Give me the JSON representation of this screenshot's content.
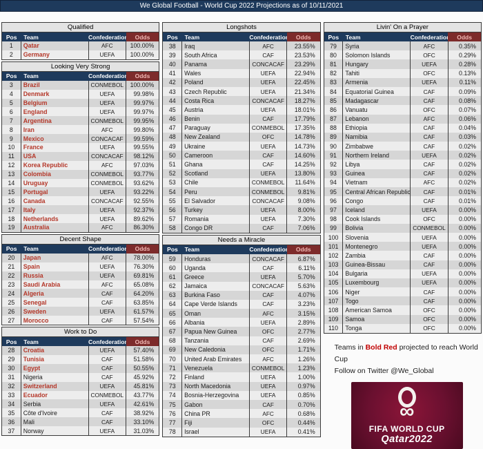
{
  "title": "We Global Football - World Cup 2022 Projections as of 10/11/2021",
  "table_headers": [
    "Pos",
    "Team",
    "Confederation",
    "Odds"
  ],
  "colors": {
    "header_navy": "#1e3a5c",
    "odds_header_maroon": "#7d2b2b",
    "qualified_team_red": "#b5382a",
    "stripe_dark": "#d6d6d6",
    "stripe_light": "#ededed",
    "logo_maroon": "#6b1030"
  },
  "columns": [
    {
      "sections": [
        {
          "title": "Qualified",
          "rows": [
            [
              1,
              "Qatar",
              "AFC",
              "100.00%",
              1
            ],
            [
              2,
              "Germany",
              "UEFA",
              "100.00%",
              1
            ]
          ]
        },
        {
          "title": "Looking Very Strong",
          "rows": [
            [
              3,
              "Brazil",
              "CONMEBOL",
              "100.00%",
              1
            ],
            [
              4,
              "Denmark",
              "UEFA",
              "99.98%",
              1
            ],
            [
              5,
              "Belgium",
              "UEFA",
              "99.97%",
              1
            ],
            [
              6,
              "England",
              "UEFA",
              "99.97%",
              1
            ],
            [
              7,
              "Argentina",
              "CONMEBOL",
              "99.95%",
              1
            ],
            [
              8,
              "Iran",
              "AFC",
              "99.80%",
              1
            ],
            [
              9,
              "Mexico",
              "CONCACAF",
              "99.59%",
              1
            ],
            [
              10,
              "France",
              "UEFA",
              "99.55%",
              1
            ],
            [
              11,
              "USA",
              "CONCACAF",
              "98.12%",
              1
            ],
            [
              12,
              "Korea Republic",
              "AFC",
              "97.03%",
              1
            ],
            [
              13,
              "Colombia",
              "CONMEBOL",
              "93.77%",
              1
            ],
            [
              14,
              "Uruguay",
              "CONMEBOL",
              "93.62%",
              1
            ],
            [
              15,
              "Portugal",
              "UEFA",
              "93.22%",
              1
            ],
            [
              16,
              "Canada",
              "CONCACAF",
              "92.55%",
              1
            ],
            [
              17,
              "Italy",
              "UEFA",
              "92.37%",
              1
            ],
            [
              18,
              "Netherlands",
              "UEFA",
              "89.62%",
              1
            ],
            [
              19,
              "Australia",
              "AFC",
              "86.30%",
              1
            ]
          ]
        },
        {
          "title": "Decent Shape",
          "rows": [
            [
              20,
              "Japan",
              "AFC",
              "78.00%",
              1
            ],
            [
              21,
              "Spain",
              "UEFA",
              "76.30%",
              1
            ],
            [
              22,
              "Russia",
              "UEFA",
              "69.81%",
              1
            ],
            [
              23,
              "Saudi Arabia",
              "AFC",
              "65.08%",
              1
            ],
            [
              24,
              "Algeria",
              "CAF",
              "64.20%",
              1
            ],
            [
              25,
              "Senegal",
              "CAF",
              "63.85%",
              1
            ],
            [
              26,
              "Sweden",
              "UEFA",
              "61.57%",
              1
            ],
            [
              27,
              "Morocco",
              "CAF",
              "57.54%",
              1
            ]
          ]
        },
        {
          "title": "Work to Do",
          "rows": [
            [
              28,
              "Croatia",
              "UEFA",
              "57.40%",
              1
            ],
            [
              29,
              "Tunisia",
              "CAF",
              "51.58%",
              1
            ],
            [
              30,
              "Egypt",
              "CAF",
              "50.55%",
              1
            ],
            [
              31,
              "Nigeria",
              "CAF",
              "45.92%",
              0
            ],
            [
              32,
              "Switzerland",
              "UEFA",
              "45.81%",
              1
            ],
            [
              33,
              "Ecuador",
              "CONMEBOL",
              "43.77%",
              1
            ],
            [
              34,
              "Serbia",
              "UEFA",
              "42.61%",
              0
            ],
            [
              35,
              "Côte d'Ivoire",
              "CAF",
              "38.92%",
              0
            ],
            [
              36,
              "Mali",
              "CAF",
              "33.10%",
              0
            ],
            [
              37,
              "Norway",
              "UEFA",
              "31.03%",
              0
            ]
          ]
        }
      ]
    },
    {
      "sections": [
        {
          "title": "Longshots",
          "rows": [
            [
              38,
              "Iraq",
              "AFC",
              "23.55%",
              0
            ],
            [
              39,
              "South Africa",
              "CAF",
              "23.53%",
              0
            ],
            [
              40,
              "Panama",
              "CONCACAF",
              "23.29%",
              0
            ],
            [
              41,
              "Wales",
              "UEFA",
              "22.94%",
              0
            ],
            [
              42,
              "Poland",
              "UEFA",
              "22.45%",
              0
            ],
            [
              43,
              "Czech Republic",
              "UEFA",
              "21.34%",
              0
            ],
            [
              44,
              "Costa Rica",
              "CONCACAF",
              "18.27%",
              0
            ],
            [
              45,
              "Austria",
              "UEFA",
              "18.01%",
              0
            ],
            [
              46,
              "Benin",
              "CAF",
              "17.79%",
              0
            ],
            [
              47,
              "Paraguay",
              "CONMEBOL",
              "17.35%",
              0
            ],
            [
              48,
              "New Zealand",
              "OFC",
              "14.78%",
              0
            ],
            [
              49,
              "Ukraine",
              "UEFA",
              "14.73%",
              0
            ],
            [
              50,
              "Cameroon",
              "CAF",
              "14.60%",
              0
            ],
            [
              51,
              "Ghana",
              "CAF",
              "14.25%",
              0
            ],
            [
              52,
              "Scotland",
              "UEFA",
              "13.80%",
              0
            ],
            [
              53,
              "Chile",
              "CONMEBOL",
              "11.64%",
              0
            ],
            [
              54,
              "Peru",
              "CONMEBOL",
              "9.81%",
              0
            ],
            [
              55,
              "El Salvador",
              "CONCACAF",
              "9.08%",
              0
            ],
            [
              56,
              "Turkey",
              "UEFA",
              "8.00%",
              0
            ],
            [
              57,
              "Romania",
              "UEFA",
              "7.30%",
              0
            ],
            [
              58,
              "Congo DR",
              "CAF",
              "7.06%",
              0
            ]
          ]
        },
        {
          "title": "Needs a Miracle",
          "rows": [
            [
              59,
              "Honduras",
              "CONCACAF",
              "6.87%",
              0
            ],
            [
              60,
              "Uganda",
              "CAF",
              "6.11%",
              0
            ],
            [
              61,
              "Greece",
              "UEFA",
              "5.70%",
              0
            ],
            [
              62,
              "Jamaica",
              "CONCACAF",
              "5.63%",
              0
            ],
            [
              63,
              "Burkina Faso",
              "CAF",
              "4.07%",
              0
            ],
            [
              64,
              "Cape Verde Islands",
              "CAF",
              "3.23%",
              0
            ],
            [
              65,
              "Oman",
              "AFC",
              "3.15%",
              0
            ],
            [
              66,
              "Albania",
              "UEFA",
              "2.89%",
              0
            ],
            [
              67,
              "Papua New Guinea",
              "OFC",
              "2.77%",
              0
            ],
            [
              68,
              "Tanzania",
              "CAF",
              "2.69%",
              0
            ],
            [
              69,
              "New Caledonia",
              "OFC",
              "1.71%",
              0
            ],
            [
              70,
              "United Arab Emirates",
              "AFC",
              "1.26%",
              0
            ],
            [
              71,
              "Venezuela",
              "CONMEBOL",
              "1.23%",
              0
            ],
            [
              72,
              "Finland",
              "UEFA",
              "1.00%",
              0
            ],
            [
              73,
              "North Macedonia",
              "UEFA",
              "0.97%",
              0
            ],
            [
              74,
              "Bosnia-Herzegovina",
              "UEFA",
              "0.85%",
              0
            ],
            [
              75,
              "Gabon",
              "CAF",
              "0.70%",
              0
            ],
            [
              76,
              "China PR",
              "AFC",
              "0.68%",
              0
            ],
            [
              77,
              "Fiji",
              "OFC",
              "0.44%",
              0
            ],
            [
              78,
              "Israel",
              "UEFA",
              "0.41%",
              0
            ]
          ]
        }
      ]
    },
    {
      "sections": [
        {
          "title": "Livin' On a Prayer",
          "rows": [
            [
              79,
              "Syria",
              "AFC",
              "0.35%",
              0
            ],
            [
              80,
              "Solomon Islands",
              "OFC",
              "0.29%",
              0
            ],
            [
              81,
              "Hungary",
              "UEFA",
              "0.28%",
              0
            ],
            [
              82,
              "Tahiti",
              "OFC",
              "0.13%",
              0
            ],
            [
              83,
              "Armenia",
              "UEFA",
              "0.11%",
              0
            ],
            [
              84,
              "Equatorial Guinea",
              "CAF",
              "0.09%",
              0
            ],
            [
              85,
              "Madagascar",
              "CAF",
              "0.08%",
              0
            ],
            [
              86,
              "Vanuatu",
              "OFC",
              "0.07%",
              0
            ],
            [
              87,
              "Lebanon",
              "AFC",
              "0.06%",
              0
            ],
            [
              88,
              "Ethiopia",
              "CAF",
              "0.04%",
              0
            ],
            [
              89,
              "Namibia",
              "CAF",
              "0.03%",
              0
            ],
            [
              90,
              "Zimbabwe",
              "CAF",
              "0.02%",
              0
            ],
            [
              91,
              "Northern Ireland",
              "UEFA",
              "0.02%",
              0
            ],
            [
              92,
              "Libya",
              "CAF",
              "0.02%",
              0
            ],
            [
              93,
              "Guinea",
              "CAF",
              "0.02%",
              0
            ],
            [
              94,
              "Vietnam",
              "AFC",
              "0.02%",
              0
            ],
            [
              95,
              "Central African Republic",
              "CAF",
              "0.01%",
              0
            ],
            [
              96,
              "Congo",
              "CAF",
              "0.01%",
              0
            ],
            [
              97,
              "Iceland",
              "UEFA",
              "0.00%",
              0
            ],
            [
              98,
              "Cook Islands",
              "OFC",
              "0.00%",
              0
            ],
            [
              99,
              "Bolivia",
              "CONMEBOL",
              "0.00%",
              0
            ],
            [
              100,
              "Slovenia",
              "UEFA",
              "0.00%",
              0
            ],
            [
              101,
              "Montenegro",
              "UEFA",
              "0.00%",
              0
            ],
            [
              102,
              "Zambia",
              "CAF",
              "0.00%",
              0
            ],
            [
              103,
              "Guinea-Bissau",
              "CAF",
              "0.00%",
              0
            ],
            [
              104,
              "Bulgaria",
              "UEFA",
              "0.00%",
              0
            ],
            [
              105,
              "Luxembourg",
              "UEFA",
              "0.00%",
              0
            ],
            [
              106,
              "Niger",
              "CAF",
              "0.00%",
              0
            ],
            [
              107,
              "Togo",
              "CAF",
              "0.00%",
              0
            ],
            [
              108,
              "American Samoa",
              "OFC",
              "0.00%",
              0
            ],
            [
              109,
              "Samoa",
              "OFC",
              "0.00%",
              0
            ],
            [
              110,
              "Tonga",
              "OFC",
              "0.00%",
              0
            ]
          ]
        }
      ]
    }
  ],
  "note": {
    "prefix": "Teams in ",
    "bold": "Bold Red",
    "suffix": " projected to reach World Cup",
    "line2": "Follow on Twitter @We_Global"
  },
  "logo": {
    "line1": "FIFA WORLD CUP",
    "line2": "Qatar2022"
  }
}
